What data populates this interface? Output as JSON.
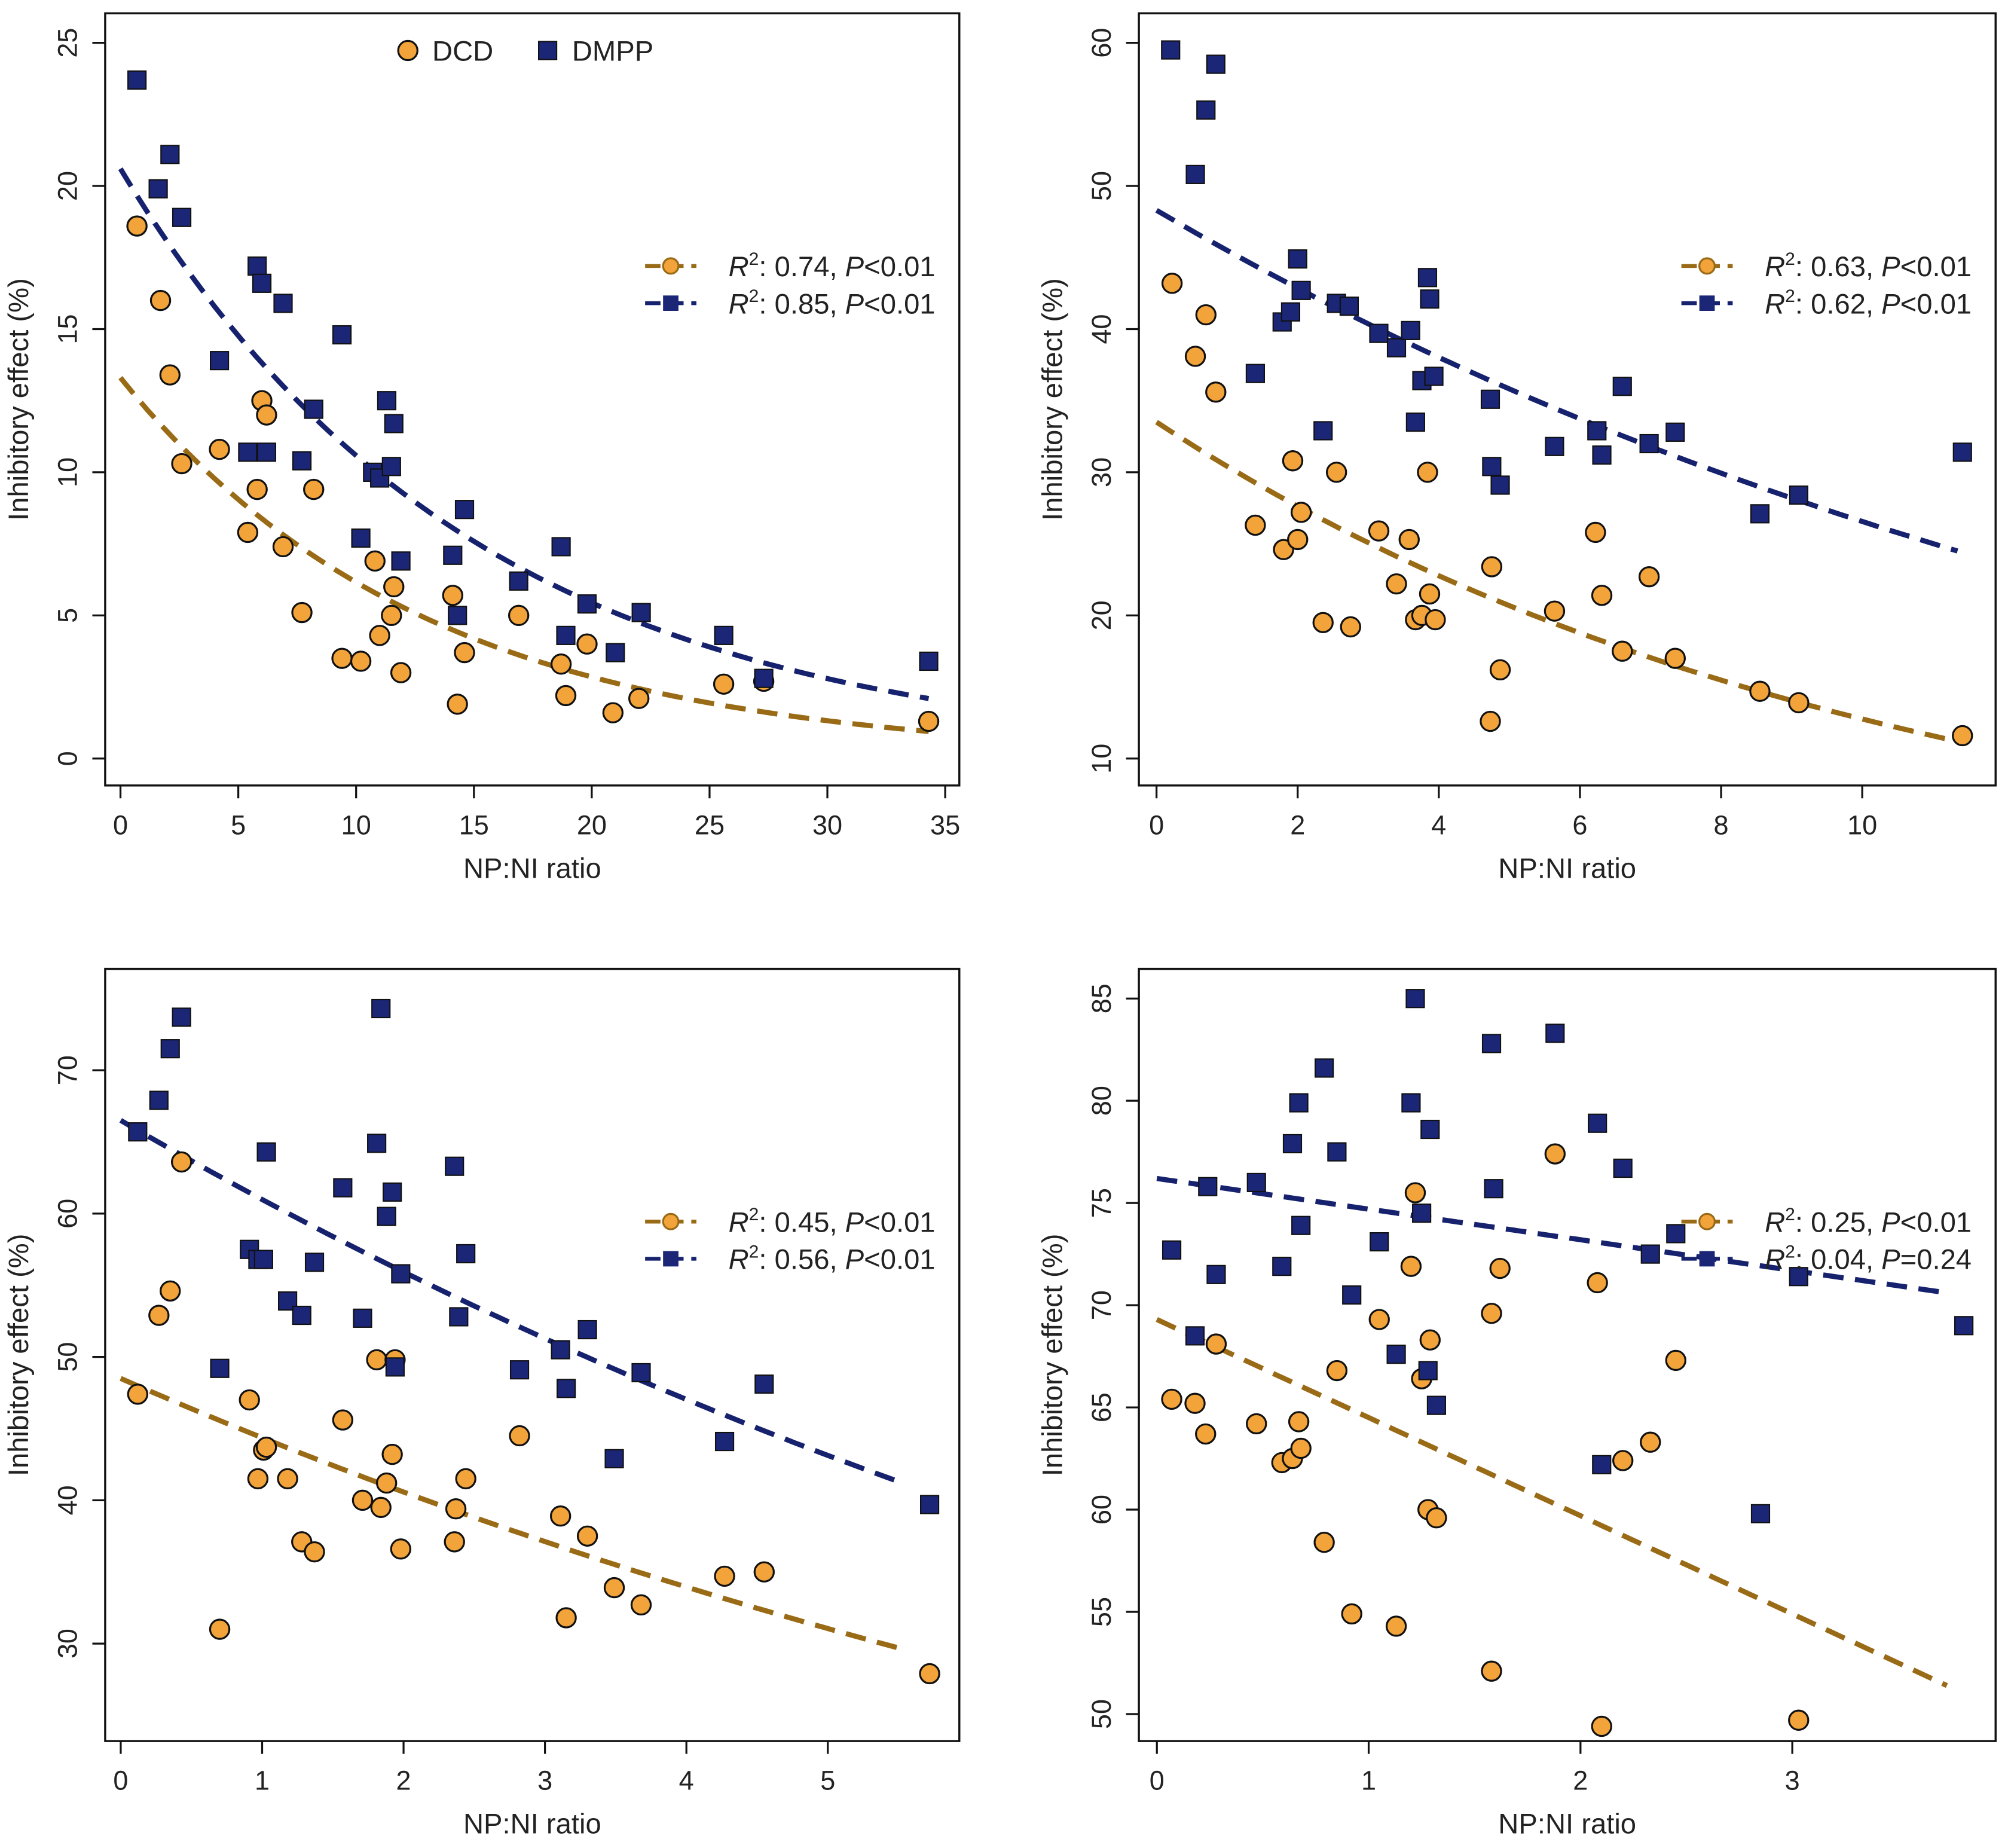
{
  "colors": {
    "dcd_fill": "#F2A33A",
    "dcd_line": "#9A6B16",
    "dmpp_fill": "#1B2677",
    "dmpp_line": "#17226E",
    "outline": "#111111"
  },
  "top_legend": {
    "dcd": "DCD",
    "dmpp": "DMPP"
  },
  "chart_data": [
    {
      "type": "scatter",
      "xlabel": "NP:NI  ratio",
      "ylabel": "Inhibitory effect (%)",
      "xlim": [
        -0.65,
        35.6
      ],
      "ylim": [
        -0.94,
        26.03
      ],
      "xticks": [
        0,
        5,
        10,
        15,
        20,
        25,
        30,
        35
      ],
      "yticks": [
        0,
        5,
        10,
        15,
        20,
        25
      ],
      "series": [
        {
          "name": "DCD",
          "fit": {
            "model": "exp",
            "a": 13.3,
            "b": 0.077,
            "x_end": 34.3
          },
          "legend": {
            "r2": "0.74",
            "p": "<0.01"
          },
          "x": [
            0.7,
            1.7,
            2.1,
            2.6,
            4.2,
            5.4,
            5.8,
            6.0,
            6.2,
            6.9,
            7.7,
            8.2,
            9.4,
            10.2,
            10.8,
            11.0,
            11.5,
            11.6,
            11.9,
            14.1,
            14.3,
            14.6,
            16.9,
            18.7,
            18.9,
            19.8,
            20.9,
            22.0,
            25.6,
            27.3,
            34.3
          ],
          "y": [
            18.6,
            16.0,
            13.4,
            10.3,
            10.8,
            7.9,
            9.4,
            12.5,
            12.0,
            7.4,
            5.1,
            9.4,
            3.5,
            3.4,
            6.9,
            4.3,
            5.0,
            6.0,
            3.0,
            5.7,
            1.9,
            3.7,
            5.0,
            3.3,
            2.2,
            4.0,
            1.6,
            2.1,
            2.6,
            2.7,
            1.3
          ]
        },
        {
          "name": "DMPP",
          "fit": {
            "model": "exp",
            "a": 20.6,
            "b": 0.0666,
            "x_end": 34.3
          },
          "legend": {
            "r2": "0.85",
            "p": "<0.01"
          },
          "x": [
            0.7,
            1.6,
            2.1,
            2.6,
            4.2,
            5.4,
            5.8,
            6.0,
            6.2,
            6.9,
            7.7,
            8.2,
            9.4,
            10.2,
            10.7,
            11.0,
            11.3,
            11.5,
            11.6,
            11.9,
            14.1,
            14.3,
            14.6,
            16.9,
            18.7,
            18.9,
            19.8,
            21.0,
            22.1,
            25.6,
            27.3,
            34.3
          ],
          "y": [
            23.7,
            19.9,
            21.1,
            18.9,
            13.9,
            10.7,
            17.2,
            16.6,
            10.7,
            15.9,
            10.4,
            12.2,
            14.8,
            7.7,
            10.0,
            9.8,
            12.5,
            10.2,
            11.7,
            6.9,
            7.1,
            5.0,
            8.7,
            6.2,
            7.4,
            4.3,
            5.4,
            3.7,
            5.1,
            4.3,
            2.8,
            3.4
          ]
        }
      ]
    },
    {
      "type": "scatter",
      "xlabel": "NP:NI  ratio",
      "ylabel": "Inhibitory effect (%)",
      "xlim": [
        -0.25,
        11.89
      ],
      "ylim": [
        8.12,
        62.06
      ],
      "xticks": [
        0,
        2,
        4,
        6,
        8,
        10
      ],
      "yticks": [
        10,
        20,
        30,
        40,
        50,
        60
      ],
      "series": [
        {
          "name": "DCD",
          "fit": {
            "model": "exp",
            "a": 33.5,
            "b": 0.0965,
            "x_end": 11.35
          },
          "legend": {
            "r2": "0.63",
            "p": "<0.01"
          },
          "x": [
            0.22,
            0.55,
            0.7,
            0.84,
            1.4,
            1.8,
            1.93,
            2.0,
            2.05,
            2.36,
            2.55,
            2.75,
            3.15,
            3.4,
            3.58,
            3.67,
            3.76,
            3.84,
            3.87,
            3.95,
            4.73,
            4.75,
            4.87,
            5.64,
            6.22,
            6.31,
            6.6,
            6.98,
            7.35,
            8.55,
            9.1,
            11.42
          ],
          "y": [
            43.2,
            38.1,
            41.0,
            35.6,
            26.3,
            24.6,
            30.8,
            25.3,
            27.2,
            19.5,
            30.0,
            19.2,
            25.9,
            22.2,
            25.3,
            19.7,
            20.0,
            30.0,
            21.5,
            19.7,
            12.6,
            23.4,
            16.2,
            20.3,
            25.8,
            21.4,
            17.5,
            22.7,
            17.0,
            14.7,
            13.9,
            11.6
          ]
        },
        {
          "name": "DMPP",
          "fit": {
            "model": "exp",
            "a": 48.3,
            "b": 0.0598,
            "x_end": 11.35
          },
          "legend": {
            "r2": "0.62",
            "p": "<0.01"
          },
          "x": [
            0.2,
            0.55,
            0.7,
            0.84,
            1.4,
            1.78,
            1.9,
            2.0,
            2.05,
            2.36,
            2.55,
            2.73,
            3.15,
            3.4,
            3.6,
            3.67,
            3.76,
            3.84,
            3.87,
            3.93,
            4.73,
            4.75,
            4.87,
            5.64,
            6.24,
            6.31,
            6.6,
            6.98,
            7.35,
            8.55,
            9.1,
            11.42
          ],
          "y": [
            59.5,
            50.8,
            55.3,
            58.5,
            36.9,
            40.5,
            41.2,
            44.9,
            42.7,
            32.9,
            41.8,
            41.6,
            39.7,
            38.7,
            39.9,
            33.5,
            36.4,
            43.6,
            42.1,
            36.7,
            35.1,
            30.4,
            29.1,
            31.8,
            32.9,
            31.2,
            36.0,
            32.0,
            32.8,
            27.1,
            28.4,
            31.4
          ]
        }
      ]
    },
    {
      "type": "scatter",
      "xlabel": "NP:NI  ratio",
      "ylabel": "Inhibitory effect (%)",
      "xlim": [
        -0.11,
        5.93
      ],
      "ylim": [
        23.2,
        77.07
      ],
      "xticks": [
        0,
        1,
        2,
        3,
        4,
        5
      ],
      "yticks": [
        30,
        40,
        50,
        60,
        70
      ],
      "series": [
        {
          "name": "DCD",
          "fit": {
            "model": "exp",
            "a": 48.5,
            "b": 0.0892,
            "x_end": 5.5
          },
          "legend": {
            "r2": "0.45",
            "p": "<0.01"
          },
          "x": [
            0.12,
            0.27,
            0.35,
            0.43,
            0.7,
            0.91,
            0.97,
            1.01,
            1.03,
            1.18,
            1.28,
            1.37,
            1.57,
            1.71,
            1.81,
            1.84,
            1.88,
            1.92,
            1.94,
            1.98,
            2.36,
            2.37,
            2.44,
            2.82,
            3.11,
            3.15,
            3.3,
            3.49,
            3.68,
            4.27,
            4.55,
            5.72
          ],
          "y": [
            47.4,
            52.9,
            54.6,
            63.6,
            31.0,
            47.0,
            41.5,
            43.5,
            43.7,
            41.5,
            37.1,
            36.4,
            45.6,
            40.0,
            49.8,
            39.5,
            41.2,
            43.2,
            49.8,
            36.6,
            37.1,
            39.4,
            41.5,
            44.5,
            38.9,
            31.8,
            37.5,
            33.9,
            32.7,
            34.7,
            35.0,
            27.9
          ]
        },
        {
          "name": "DMPP",
          "fit": {
            "model": "exp",
            "a": 66.5,
            "b": 0.0866,
            "x_end": 5.5
          },
          "legend": {
            "r2": "0.56",
            "p": "<0.01"
          },
          "x": [
            0.12,
            0.27,
            0.35,
            0.43,
            0.7,
            0.91,
            0.97,
            1.01,
            1.03,
            1.18,
            1.28,
            1.37,
            1.57,
            1.71,
            1.81,
            1.84,
            1.88,
            1.92,
            1.94,
            1.98,
            2.36,
            2.39,
            2.44,
            2.82,
            3.11,
            3.15,
            3.3,
            3.49,
            3.68,
            4.27,
            4.55,
            5.72
          ],
          "y": [
            65.7,
            67.9,
            71.5,
            73.7,
            49.2,
            57.5,
            56.8,
            56.8,
            64.3,
            53.9,
            52.9,
            56.6,
            61.8,
            52.7,
            64.9,
            74.3,
            59.8,
            61.5,
            49.3,
            55.8,
            63.3,
            52.8,
            57.2,
            49.1,
            50.5,
            47.8,
            51.9,
            42.9,
            48.9,
            44.1,
            48.1,
            39.7
          ]
        }
      ]
    },
    {
      "type": "scatter",
      "xlabel": "NP:NI  ratio",
      "ylabel": "Inhibitory effect (%)",
      "xlim": [
        -0.085,
        3.96
      ],
      "ylim": [
        48.68,
        86.45
      ],
      "xticks": [
        0,
        1,
        2,
        3
      ],
      "yticks": [
        50,
        55,
        60,
        65,
        70,
        75,
        80,
        85
      ],
      "series": [
        {
          "name": "DCD",
          "fit": {
            "model": "linear",
            "a": 69.3,
            "b": -4.8,
            "x_end": 3.73
          },
          "legend": {
            "r2": "0.25",
            "p": "<0.01"
          },
          "x": [
            0.07,
            0.18,
            0.23,
            0.28,
            0.47,
            0.59,
            0.64,
            0.67,
            0.68,
            0.79,
            0.85,
            0.92,
            1.05,
            1.13,
            1.2,
            1.22,
            1.25,
            1.28,
            1.29,
            1.32,
            1.58,
            1.58,
            1.62,
            1.88,
            2.08,
            2.1,
            2.2,
            2.33,
            2.45,
            3.03
          ],
          "y": [
            65.4,
            65.2,
            63.7,
            68.1,
            64.2,
            62.3,
            62.5,
            64.3,
            63.0,
            58.4,
            66.8,
            54.9,
            69.3,
            54.3,
            71.9,
            75.5,
            66.4,
            60.0,
            68.3,
            59.6,
            52.1,
            69.6,
            71.8,
            77.4,
            71.1,
            49.4,
            62.4,
            63.3,
            67.3,
            49.7
          ]
        },
        {
          "name": "DMPP",
          "fit": {
            "model": "linear",
            "a": 76.2,
            "b": -1.5,
            "x_end": 3.73
          },
          "legend": {
            "r2": "0.04",
            "p": "=0.24"
          },
          "x": [
            0.07,
            0.18,
            0.24,
            0.28,
            0.47,
            0.59,
            0.64,
            0.67,
            0.68,
            0.79,
            0.85,
            0.92,
            1.05,
            1.13,
            1.2,
            1.22,
            1.25,
            1.28,
            1.29,
            1.32,
            1.58,
            1.59,
            1.88,
            2.08,
            2.1,
            2.2,
            2.33,
            2.45,
            2.85,
            3.03,
            3.81
          ],
          "y": [
            72.7,
            68.5,
            75.8,
            71.5,
            76.0,
            71.9,
            77.9,
            79.9,
            73.9,
            81.6,
            77.5,
            70.5,
            73.1,
            67.6,
            79.9,
            85.0,
            74.5,
            66.8,
            78.6,
            65.1,
            82.8,
            75.7,
            83.3,
            78.9,
            62.2,
            76.7,
            72.5,
            73.5,
            59.8,
            71.4,
            69.0
          ]
        }
      ]
    }
  ]
}
